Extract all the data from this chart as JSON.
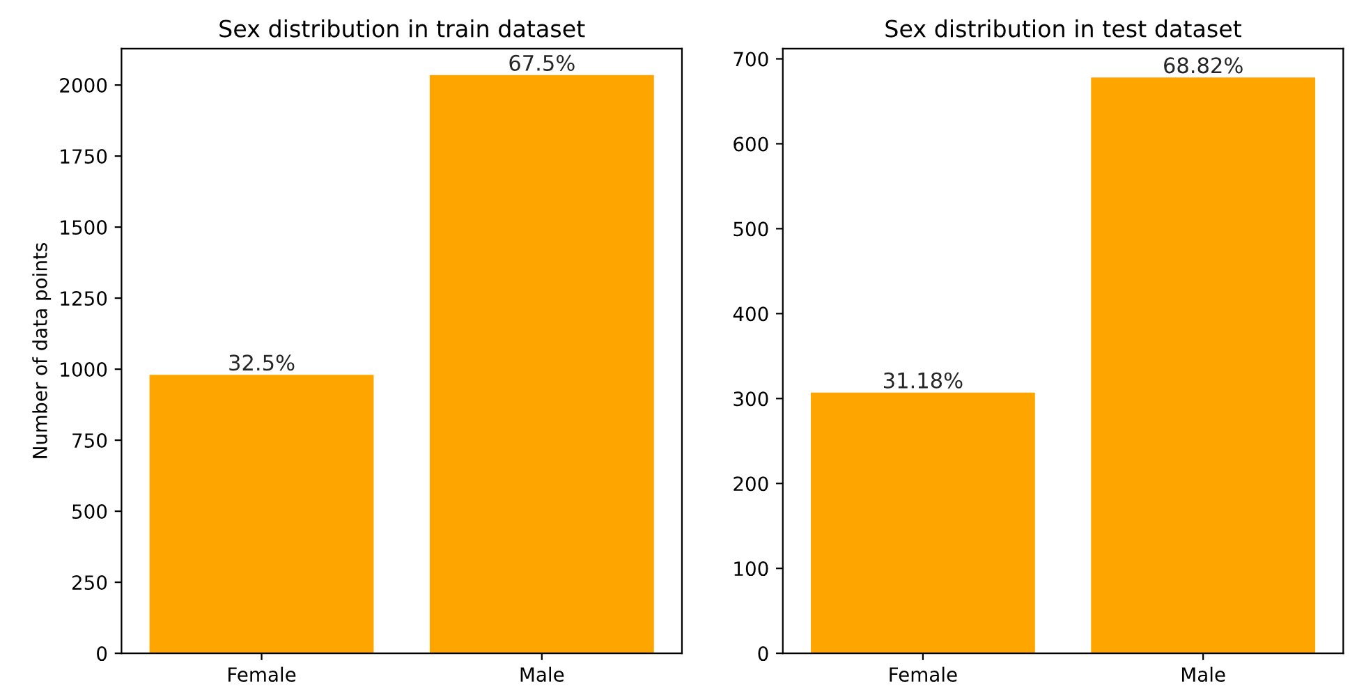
{
  "chart_data": [
    {
      "type": "bar",
      "title": "Sex distribution in train dataset",
      "ylabel": "Number of data points",
      "categories": [
        "Female",
        "Male"
      ],
      "values": [
        980,
        2035
      ],
      "color": "#ffa500",
      "annotations": [
        {
          "text": "32.5%",
          "x": "Female",
          "y": 980
        },
        {
          "text": "67.5%",
          "x": "Male",
          "y": 2035
        }
      ],
      "ylim": [
        0,
        2128
      ],
      "yticks": [
        0,
        250,
        500,
        750,
        1000,
        1250,
        1500,
        1750,
        2000
      ],
      "grid": false
    },
    {
      "type": "bar",
      "title": "Sex distribution in test dataset",
      "categories": [
        "Female",
        "Male"
      ],
      "values": [
        307,
        678
      ],
      "color": "#ffa500",
      "annotations": [
        {
          "text": "31.18%",
          "x": "Female",
          "y": 307
        },
        {
          "text": "68.82%",
          "x": "Male",
          "y": 678
        }
      ],
      "ylim": [
        0,
        712
      ],
      "yticks": [
        0,
        100,
        200,
        300,
        400,
        500,
        600,
        700
      ],
      "grid": false
    }
  ]
}
